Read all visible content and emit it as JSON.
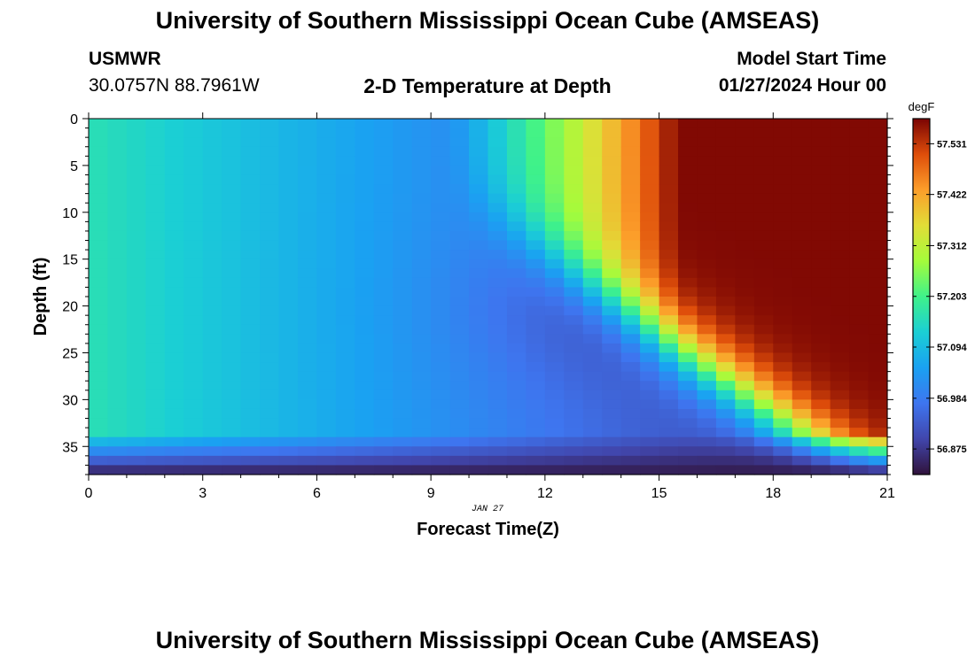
{
  "header": {
    "title": "University of Southern Mississippi Ocean Cube (AMSEAS)",
    "station": "USMWR",
    "coordinates": "30.0757N  88.7961W",
    "plot_title": "2-D Temperature at Depth",
    "start_label": "Model Start Time",
    "start_value": "01/27/2024 Hour 00"
  },
  "footer": {
    "title": "University of Southern Mississippi Ocean Cube (AMSEAS)"
  },
  "chart_data": {
    "type": "heatmap",
    "title": "2-D Temperature at Depth",
    "xlabel": "Forecast Time(Z)",
    "ylabel": "Depth (ft)",
    "date_label": "JAN 27",
    "xlim": [
      0,
      21
    ],
    "ylim": [
      38,
      0
    ],
    "x_ticks": [
      0,
      3,
      6,
      9,
      12,
      15,
      18,
      21
    ],
    "y_ticks": [
      0,
      5,
      10,
      15,
      20,
      25,
      30,
      35
    ],
    "colorbar": {
      "units": "degF",
      "range": [
        56.82,
        57.585
      ],
      "tick_values": [
        57.531,
        57.422,
        57.312,
        57.203,
        57.094,
        56.984,
        56.875
      ],
      "tick_labels": [
        "57.531",
        "57.422",
        "57.312",
        "57.203",
        "57.094",
        "56.984",
        "56.875"
      ]
    },
    "grid": false,
    "colormap": "turbo",
    "notes": "Warm (~57.55 degF) water intrudes from the surface after ~10Z and deepens to ~25 ft by 21Z; mid-column cool core (~57.09) near 14Z, 20 ft; bottom layer below ~34 ft is coldest (~56.83 degF)."
  }
}
